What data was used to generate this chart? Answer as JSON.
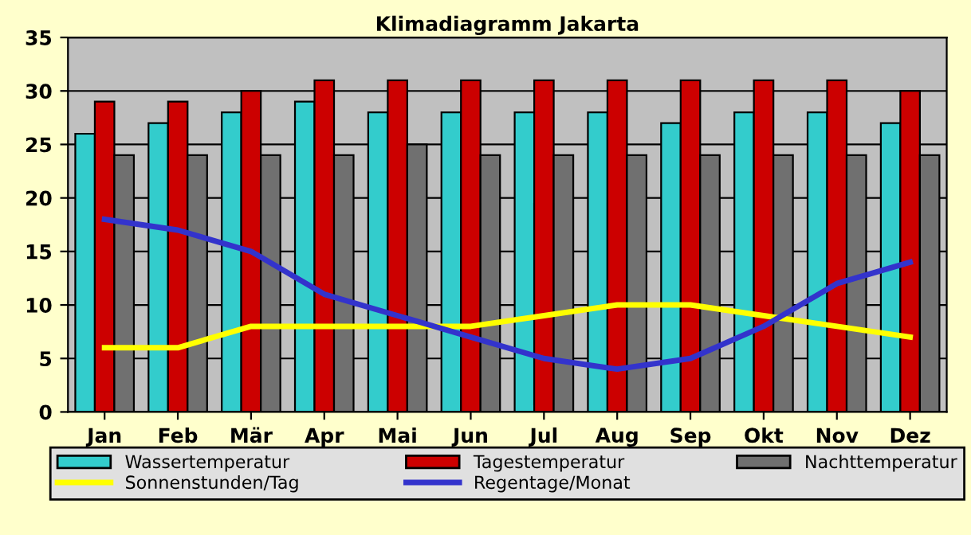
{
  "chart_data": {
    "type": "bar",
    "title": "Klimadiagramm Jakarta",
    "categories": [
      "Jan",
      "Feb",
      "Mär",
      "Apr",
      "Mai",
      "Jun",
      "Jul",
      "Aug",
      "Sep",
      "Okt",
      "Nov",
      "Dez"
    ],
    "series": [
      {
        "name": "Wassertemperatur",
        "color": "#33cccc",
        "values": [
          26,
          27,
          28,
          29,
          28,
          28,
          28,
          28,
          27,
          28,
          28,
          27
        ]
      },
      {
        "name": "Tagestemperatur",
        "color": "#cc0000",
        "values": [
          29,
          29,
          30,
          31,
          31,
          31,
          31,
          31,
          31,
          31,
          31,
          30
        ]
      },
      {
        "name": "Nachttemperatur",
        "color": "#707070",
        "values": [
          24,
          24,
          24,
          24,
          25,
          24,
          24,
          24,
          24,
          24,
          24,
          24
        ]
      },
      {
        "name": "Sonnenstunden/Tag",
        "type": "line",
        "color": "#ffff00",
        "values": [
          6,
          6,
          8,
          8,
          8,
          8,
          9,
          10,
          10,
          9,
          8,
          7
        ]
      },
      {
        "name": "Regentage/Monat",
        "type": "line",
        "color": "#3333cc",
        "values": [
          18,
          17,
          15,
          11,
          9,
          7,
          5,
          4,
          5,
          8,
          12,
          14
        ]
      }
    ],
    "ylim": [
      0,
      35
    ],
    "yticks": [
      0,
      5,
      10,
      15,
      20,
      25,
      30,
      35
    ],
    "grid": "y",
    "legend": "bottom",
    "marker": "none",
    "line_style": "solid"
  }
}
